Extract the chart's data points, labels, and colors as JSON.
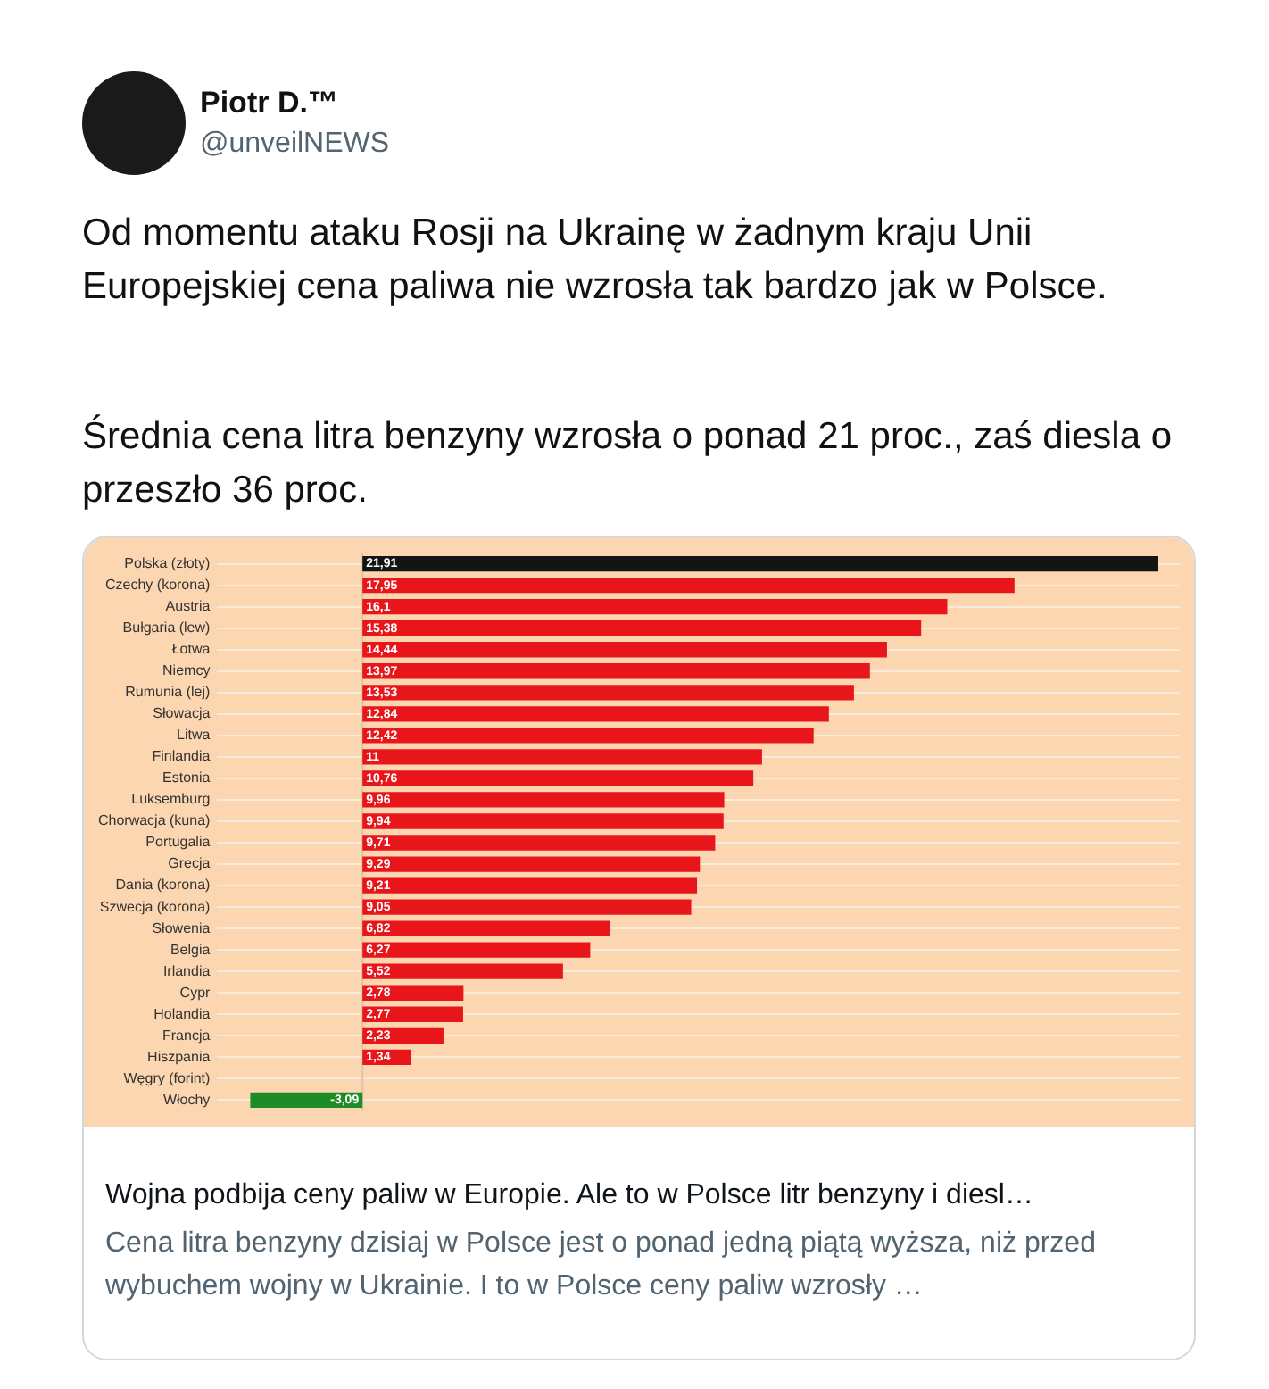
{
  "chart_data": {
    "type": "bar",
    "orientation": "horizontal",
    "categories": [
      "Polska (złoty)",
      "Czechy (korona)",
      "Austria",
      "Bułgaria (lew)",
      "Łotwa",
      "Niemcy",
      "Rumunia (lej)",
      "Słowacja",
      "Litwa",
      "Finlandia",
      "Estonia",
      "Luksemburg",
      "Chorwacja (kuna)",
      "Portugalia",
      "Grecja",
      "Dania (korona)",
      "Szwecja (korona)",
      "Słowenia",
      "Belgia",
      "Irlandia",
      "Cypr",
      "Holandia",
      "Francja",
      "Hiszpania",
      "Węgry (forint)",
      "Włochy"
    ],
    "values": [
      21.91,
      17.95,
      16.1,
      15.38,
      14.44,
      13.97,
      13.53,
      12.84,
      12.42,
      11,
      10.76,
      9.96,
      9.94,
      9.71,
      9.29,
      9.21,
      9.05,
      6.82,
      6.27,
      5.52,
      2.78,
      2.77,
      2.23,
      1.34,
      null,
      -3.09
    ],
    "value_labels": [
      "21,91",
      "17,95",
      "16,1",
      "15,38",
      "14,44",
      "13,97",
      "13,53",
      "12,84",
      "12,42",
      "11",
      "10,76",
      "9,96",
      "9,94",
      "9,71",
      "9,29",
      "9,21",
      "9,05",
      "6,82",
      "6,27",
      "5,52",
      "2,78",
      "2,77",
      "2,23",
      "1,34",
      null,
      "-3,09"
    ],
    "colors": [
      "#141414",
      "#e8161b",
      "#e8161b",
      "#e8161b",
      "#e8161b",
      "#e8161b",
      "#e8161b",
      "#e8161b",
      "#e8161b",
      "#e8161b",
      "#e8161b",
      "#e8161b",
      "#e8161b",
      "#e8161b",
      "#e8161b",
      "#e8161b",
      "#e8161b",
      "#e8161b",
      "#e8161b",
      "#e8161b",
      "#e8161b",
      "#e8161b",
      "#e8161b",
      "#e8161b",
      "#e8161b",
      "#1e8c26"
    ],
    "xlim": [
      -4,
      22.5
    ],
    "grid": "y",
    "tick_labels": "y",
    "ref_lines": [
      {
        "axis": "x",
        "value": 0,
        "color": "#dcc6a8"
      }
    ],
    "annotations": [
      "Piotr D.™",
      "@unveilNEWS",
      "Od momentu ataku Rosji na Ukrainę w żadnym kraju Unii Europejskiej cena paliwa nie wzrosła tak bardzo jak w Polsce.",
      "Średnia cena litra benzyny wzrosła o ponad 21 proc., zaś diesla o przeszło 36 proc.",
      "Wojna podbija ceny paliw w Europie. Ale to w Polsce litr benzyny i diesl…",
      "Cena litra benzyny dzisiaj w Polsce jest o ponad jedną piątą wyższa, niż przed wybuchem wojny w Ukrainie. I to w Polsce ceny paliw wzrosły …"
    ]
  }
}
